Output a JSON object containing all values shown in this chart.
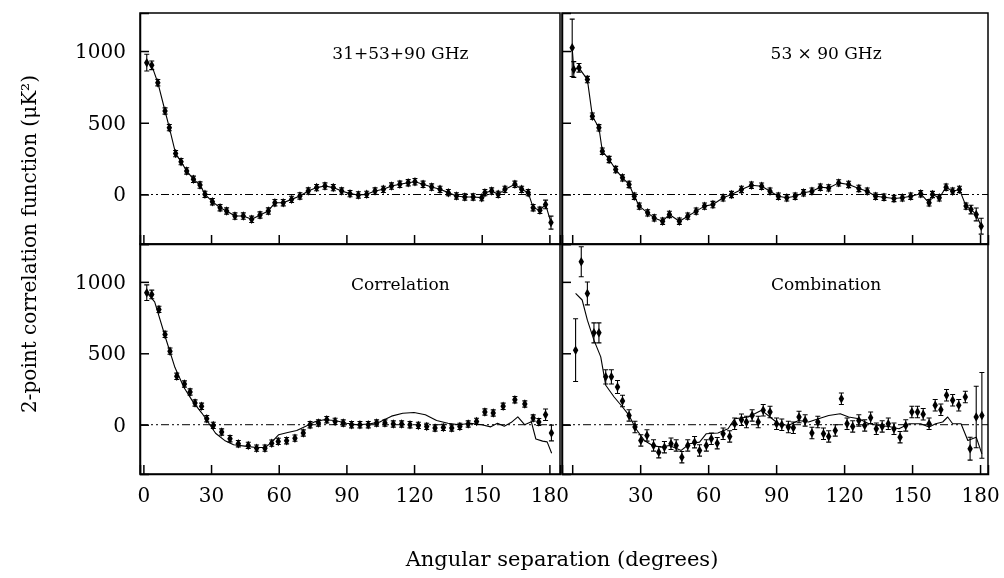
{
  "chart_data": [
    {
      "type": "scatter",
      "title": "31+53+90 GHz",
      "ylabel": "2-point correlation function (μK²)",
      "tick_labels": "y",
      "xlim": [
        -1.5,
        184.7
      ],
      "xticks": [
        0,
        30,
        60,
        90,
        120,
        150,
        180
      ],
      "ylim": [
        -345,
        1265
      ],
      "yticks": [
        0,
        500,
        1000
      ],
      "ref_lines": [
        {
          "axis": "y",
          "value": 0,
          "line_style": "dashed",
          "color": "#000000"
        }
      ],
      "x": [
        1.5,
        3.7,
        6.4,
        9.6,
        11.5,
        14.3,
        16.7,
        19.2,
        22.2,
        25.1,
        27.3,
        30.6,
        34,
        36.9,
        40.6,
        44.3,
        48,
        51.7,
        55.4,
        58.3,
        62,
        65.7,
        69.4,
        73.1,
        76.8,
        80.5,
        84.2,
        87.9,
        91.6,
        95.3,
        99,
        102.7,
        106.4,
        110,
        113.7,
        117.4,
        120.4,
        124,
        127.8,
        131.5,
        135.2,
        138.8,
        142.5,
        146.2,
        150,
        151.4,
        154.4,
        157.3,
        160.3,
        164.7,
        167.7,
        170.6,
        172.8,
        175.8,
        178.3,
        180.7
      ],
      "series": [
        {
          "type": "line",
          "marker": "diamond",
          "color": "#000000",
          "values": [
            919,
            900,
            779,
            582,
            466,
            285,
            229,
            164,
            106,
            66,
            1,
            -50,
            -92,
            -115,
            -150,
            -150,
            -173,
            -143,
            -115,
            -57,
            -57,
            -34,
            -10,
            24,
            48,
            59,
            48,
            24,
            6,
            -3,
            1,
            24,
            36,
            59,
            71,
            82,
            89,
            71,
            52,
            36,
            13,
            -10,
            -17,
            -17,
            -22,
            13,
            24,
            1,
            36,
            71,
            36,
            13,
            -92,
            -110,
            -69,
            -196
          ],
          "errors": [
            58,
            30,
            22,
            22,
            22,
            22,
            22,
            22,
            22,
            22,
            22,
            22,
            22,
            22,
            22,
            22,
            22,
            22,
            22,
            22,
            22,
            22,
            22,
            22,
            22,
            22,
            22,
            22,
            22,
            22,
            22,
            22,
            22,
            22,
            22,
            22,
            22,
            22,
            22,
            22,
            22,
            22,
            22,
            22,
            22,
            22,
            22,
            22,
            22,
            22,
            22,
            22,
            22,
            22,
            30,
            45
          ]
        }
      ]
    },
    {
      "type": "scatter",
      "title": "53 × 90 GHz",
      "tick_labels": false,
      "xlim": [
        -4.5,
        183.5
      ],
      "xticks": [
        {
          "value": 0,
          "label": null
        },
        30,
        60,
        90,
        120,
        150,
        180
      ],
      "ylim": [
        -345,
        1265
      ],
      "yticks": [
        0,
        500,
        1000
      ],
      "ref_lines": [
        {
          "axis": "y",
          "value": 0,
          "line_style": "dashed",
          "color": "#000000"
        }
      ],
      "x": [
        0,
        0.7,
        3,
        6.7,
        8.9,
        11.8,
        13.3,
        16.3,
        19.2,
        22.2,
        25.1,
        27.4,
        29.6,
        33.3,
        36.2,
        39.9,
        42.9,
        47.3,
        51,
        54.7,
        58.4,
        62.1,
        66.6,
        70.3,
        74.7,
        79.1,
        83.6,
        87.3,
        91,
        94.7,
        98.4,
        102.1,
        105.8,
        109.5,
        113.2,
        117.6,
        122,
        126.5,
        130.2,
        133.9,
        137.6,
        142,
        145.7,
        149.4,
        153.8,
        157.5,
        159,
        162,
        165,
        167.9,
        170.9,
        173.8,
        176,
        178.3,
        180.5
      ],
      "series": [
        {
          "type": "line",
          "marker": "diamond",
          "color": "#000000",
          "values": [
            1022,
            871,
            883,
            801,
            546,
            465,
            302,
            244,
            174,
            116,
            70,
            -12,
            -81,
            -128,
            -163,
            -186,
            -139,
            -186,
            -151,
            -116,
            -81,
            -70,
            -23,
            0,
            35,
            65,
            58,
            23,
            -12,
            -23,
            -12,
            12,
            23,
            51,
            46,
            81,
            70,
            42,
            23,
            -12,
            -19,
            -28,
            -23,
            -12,
            5,
            -58,
            0,
            -23,
            51,
            23,
            35,
            -81,
            -105,
            -139,
            -221
          ],
          "errors": [
            200,
            55,
            30,
            22,
            22,
            22,
            22,
            22,
            22,
            22,
            22,
            22,
            22,
            22,
            22,
            22,
            22,
            22,
            22,
            22,
            22,
            22,
            22,
            22,
            22,
            22,
            22,
            22,
            22,
            22,
            22,
            22,
            22,
            22,
            22,
            22,
            22,
            22,
            22,
            22,
            22,
            22,
            22,
            22,
            22,
            22,
            22,
            22,
            22,
            22,
            22,
            22,
            30,
            45,
            55
          ]
        }
      ]
    },
    {
      "type": "scatter",
      "title": "Correlation",
      "xlabel": "Angular separation (degrees)",
      "xlim": [
        -1.5,
        184.7
      ],
      "xticks": [
        0,
        30,
        60,
        90,
        120,
        150,
        180
      ],
      "ylim": [
        -345,
        1265
      ],
      "yticks": [
        0,
        500,
        1000
      ],
      "ref_lines": [
        {
          "axis": "y",
          "value": 0,
          "line_style": "dashed",
          "color": "#000000"
        }
      ],
      "series": [
        {
          "type": "scatter",
          "marker": "diamond",
          "color": "#000000",
          "x": [
            1.5,
            3.7,
            6.9,
            9.6,
            11.8,
            14.8,
            18.2,
            20.7,
            22.9,
            25.8,
            28.1,
            31,
            34.7,
            38.4,
            42.1,
            46.5,
            50.2,
            53.9,
            56.9,
            59.8,
            63.5,
            67.2,
            70.9,
            73.9,
            77.6,
            81.3,
            85,
            88.6,
            92.3,
            96,
            99.7,
            103.4,
            107.1,
            110.8,
            114.5,
            118.2,
            121.9,
            125.6,
            129.3,
            133,
            136.7,
            140.3,
            144,
            147.7,
            151.4,
            155.1,
            159.5,
            164.7,
            169.1,
            172.8,
            175.3,
            178.3,
            180.9
          ],
          "values": [
            924,
            912,
            807,
            632,
            515,
            339,
            285,
            229,
            152,
            129,
            42,
            -5,
            -51,
            -98,
            -133,
            -145,
            -164,
            -164,
            -129,
            -117,
            -112,
            -94,
            -58,
            0,
            12,
            35,
            23,
            12,
            0,
            0,
            0,
            12,
            12,
            5,
            5,
            0,
            -5,
            -12,
            -23,
            -19,
            -23,
            -12,
            5,
            23,
            89,
            82,
            129,
            175,
            145,
            47,
            19,
            70,
            -58
          ],
          "errors": [
            55,
            30,
            22,
            22,
            22,
            22,
            22,
            22,
            22,
            22,
            22,
            22,
            22,
            22,
            22,
            22,
            22,
            22,
            22,
            22,
            22,
            22,
            22,
            22,
            22,
            22,
            22,
            22,
            22,
            22,
            22,
            22,
            22,
            22,
            22,
            22,
            22,
            22,
            22,
            22,
            22,
            22,
            22,
            22,
            22,
            22,
            22,
            22,
            22,
            22,
            25,
            40,
            55
          ]
        },
        {
          "type": "line",
          "marker": "none",
          "color": "#000000",
          "x": [
            1.5,
            5,
            10,
            14,
            18,
            22,
            26,
            29,
            32,
            36,
            40,
            45,
            50,
            54,
            57,
            60,
            64,
            68,
            72,
            76,
            80,
            85,
            90,
            95,
            100,
            105,
            110,
            115,
            120,
            125,
            130,
            135,
            140,
            145,
            150,
            154,
            157,
            160,
            163,
            166,
            169,
            172,
            174,
            177,
            179,
            181
          ],
          "values": [
            924,
            860,
            600,
            400,
            260,
            160,
            80,
            10,
            -60,
            -110,
            -140,
            -150,
            -160,
            -160,
            -120,
            -70,
            -55,
            -40,
            -10,
            20,
            35,
            30,
            10,
            0,
            5,
            20,
            60,
            80,
            85,
            70,
            30,
            10,
            0,
            10,
            0,
            -15,
            10,
            -10,
            15,
            55,
            0,
            20,
            -100,
            -115,
            -120,
            -200
          ]
        }
      ]
    },
    {
      "type": "scatter",
      "title": "Combination",
      "tick_labels": "x",
      "xlim": [
        -4.5,
        183.5
      ],
      "xticks": [
        {
          "value": 0,
          "label": null
        },
        30,
        60,
        90,
        120,
        150,
        180
      ],
      "ylim": [
        -345,
        1265
      ],
      "yticks": [
        0,
        500,
        1000
      ],
      "ref_lines": [
        {
          "axis": "y",
          "value": 0,
          "line_style": "dashed",
          "color": "#000000"
        }
      ],
      "series": [
        {
          "type": "scatter",
          "marker": "diamond",
          "color": "#000000",
          "x": [
            1.5,
            4,
            6.7,
            9.6,
            11.8,
            14.8,
            17.3,
            20,
            22.2,
            25.1,
            27.7,
            30.3,
            33,
            35.9,
            38.2,
            40.7,
            43.6,
            45.9,
            48.4,
            51,
            54,
            56.2,
            59.2,
            61.4,
            64,
            66.6,
            69.5,
            71.7,
            74.7,
            76.9,
            79.4,
            82.1,
            84.3,
            87.3,
            90.2,
            92.5,
            95.4,
            97.6,
            100.1,
            102.8,
            105.8,
            108.4,
            110.9,
            113.2,
            116.1,
            118.8,
            121.3,
            123.8,
            126.5,
            129.1,
            131.7,
            134.2,
            136.8,
            139.5,
            142,
            144.7,
            147.2,
            149.9,
            152.4,
            154.9,
            157.5,
            160.2,
            162.7,
            165.2,
            167.9,
            170.6,
            173.5,
            175.6,
            178.3,
            180.8
          ],
          "values": [
            522,
            1141,
            919,
            643,
            643,
            335,
            335,
            264,
            166,
            65,
            -16,
            -110,
            -75,
            -145,
            -192,
            -157,
            -133,
            -145,
            -227,
            -145,
            -122,
            -180,
            -145,
            -98,
            -129,
            -63,
            -82,
            7,
            35,
            19,
            65,
            19,
            101,
            89,
            7,
            0,
            -16,
            -21,
            54,
            30,
            -58,
            19,
            -63,
            -82,
            -40,
            182,
            7,
            -12,
            30,
            -5,
            49,
            -28,
            -12,
            7,
            -28,
            -87,
            -5,
            89,
            89,
            73,
            7,
            136,
            105,
            206,
            171,
            136,
            194,
            -168,
            54,
            65
          ],
          "errors": [
            220,
            105,
            80,
            70,
            70,
            50,
            50,
            45,
            40,
            40,
            40,
            40,
            40,
            40,
            40,
            40,
            40,
            40,
            40,
            40,
            40,
            40,
            40,
            40,
            40,
            40,
            40,
            40,
            40,
            40,
            40,
            40,
            40,
            40,
            40,
            40,
            40,
            40,
            40,
            40,
            40,
            40,
            40,
            40,
            40,
            40,
            40,
            40,
            40,
            40,
            40,
            40,
            40,
            40,
            40,
            40,
            40,
            40,
            40,
            40,
            40,
            40,
            40,
            40,
            40,
            40,
            40,
            80,
            215,
            300
          ]
        },
        {
          "type": "line",
          "marker": "none",
          "color": "#000000",
          "x": [
            1.5,
            4.4,
            6.7,
            9.6,
            12.6,
            14.8,
            18.5,
            22.2,
            25.1,
            28.1,
            31.8,
            35.5,
            39.2,
            42.9,
            48.1,
            51.8,
            56.2,
            59.2,
            64.3,
            68.8,
            71.7,
            77.7,
            83.6,
            87.3,
            91,
            95.4,
            99.9,
            104.3,
            108.7,
            113.2,
            118.3,
            122,
            126.5,
            130.9,
            135.4,
            139.8,
            144.2,
            148.7,
            153.8,
            157.5,
            160.4,
            163.5,
            165.7,
            167.9,
            171.6,
            174.6,
            178.3,
            180.8
          ],
          "values": [
            919,
            873,
            732,
            592,
            475,
            276,
            194,
            124,
            65,
            -28,
            -110,
            -145,
            -157,
            -145,
            -180,
            -133,
            -122,
            -63,
            -58,
            -28,
            42,
            54,
            101,
            54,
            7,
            -5,
            30,
            19,
            42,
            65,
            77,
            54,
            42,
            7,
            -5,
            -12,
            -28,
            7,
            7,
            -16,
            7,
            19,
            54,
            7,
            7,
            -110,
            -87,
            -204
          ]
        }
      ]
    }
  ]
}
